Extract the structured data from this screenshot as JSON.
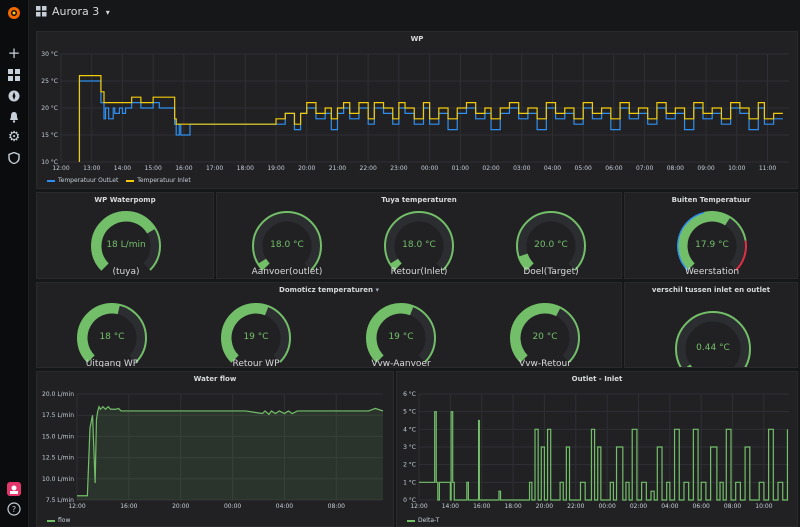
{
  "topbar": {
    "dashboard_title": "Aurora 3",
    "dropdown_caret": "▾"
  },
  "colors": {
    "green": "#73bf69",
    "yellow": "#f2cc0c",
    "blue": "#2f8ff0",
    "red": "#e02f44"
  },
  "wp": {
    "title": "WP",
    "legend": [
      "Temperatuur OutLet",
      "Temperatuur Inlet"
    ],
    "chart_data": {
      "type": "line",
      "title": "WP",
      "y_ticks": [
        "10 °C",
        "15 °C",
        "20 °C",
        "25 °C",
        "30 °C"
      ],
      "ylim": [
        10,
        30
      ],
      "x_ticks": [
        "12:00",
        "13:00",
        "14:00",
        "15:00",
        "16:00",
        "17:00",
        "18:00",
        "19:00",
        "20:00",
        "21:00",
        "22:00",
        "23:00",
        "00:00",
        "01:00",
        "02:00",
        "03:00",
        "04:00",
        "05:00",
        "06:00",
        "07:00",
        "08:00",
        "09:00",
        "10:00",
        "11:00"
      ],
      "series": [
        {
          "name": "Temperatuur OutLet",
          "color": "#2f8ff0",
          "x": [
            0.6,
            0.6,
            1.0,
            1.3,
            1.4,
            1.45,
            1.55,
            1.7,
            1.75,
            1.9,
            2.0,
            2.1,
            2.3,
            2.6,
            3.0,
            3.2,
            3.5,
            3.7,
            3.75,
            3.85,
            3.9,
            4.2,
            6.3,
            6.5,
            7.0,
            7.3,
            7.6,
            7.8,
            8.0,
            8.3,
            8.6,
            8.8,
            9.0,
            9.2,
            9.4,
            9.7,
            10.0,
            10.2,
            10.5,
            10.8,
            11.0,
            11.2,
            11.5,
            11.8,
            12.0,
            12.3,
            12.6,
            12.9,
            13.2,
            13.5,
            13.8,
            14.0,
            14.3,
            14.6,
            14.9,
            15.2,
            15.5,
            15.8,
            16.1,
            16.4,
            16.7,
            17.0,
            17.3,
            17.6,
            17.9,
            18.2,
            18.5,
            18.8,
            19.1,
            19.4,
            19.7,
            20.0,
            20.3,
            20.6,
            20.9,
            21.2,
            21.5,
            21.8,
            22.1,
            22.4,
            22.7,
            22.9,
            23.2,
            23.5
          ],
          "y": [
            10,
            25,
            25,
            21,
            18,
            20,
            18,
            20,
            19,
            20,
            19,
            20,
            21,
            20,
            21,
            20,
            20,
            17,
            15,
            17,
            15,
            17,
            17,
            17,
            17,
            19,
            16,
            19,
            20,
            18,
            19,
            16,
            19,
            20,
            18,
            20,
            17,
            20,
            19,
            17,
            20,
            19,
            17,
            20,
            17,
            19,
            16,
            19,
            20,
            18,
            19,
            16,
            19,
            20,
            18,
            19,
            16,
            20,
            18,
            19,
            17,
            20,
            18,
            19,
            16,
            20,
            18,
            19,
            17,
            20,
            18,
            19,
            16,
            20,
            18,
            19,
            17,
            20,
            19,
            16,
            20,
            17,
            18,
            18
          ]
        },
        {
          "name": "Temperatuur Inlet",
          "color": "#f2cc0c",
          "x": [
            0.6,
            0.6,
            1.0,
            1.3,
            1.4,
            1.55,
            1.75,
            2.0,
            2.3,
            2.6,
            3.0,
            3.2,
            3.5,
            3.7,
            3.75,
            3.85,
            3.9,
            4.2,
            6.3,
            6.5,
            7.0,
            7.3,
            7.6,
            7.8,
            8.0,
            8.3,
            8.6,
            8.8,
            9.0,
            9.2,
            9.4,
            9.7,
            10.0,
            10.2,
            10.5,
            10.8,
            11.0,
            11.2,
            11.5,
            11.8,
            12.0,
            12.3,
            12.6,
            12.9,
            13.2,
            13.5,
            13.8,
            14.0,
            14.3,
            14.6,
            14.9,
            15.2,
            15.5,
            15.8,
            16.1,
            16.4,
            16.7,
            17.0,
            17.3,
            17.6,
            17.9,
            18.2,
            18.5,
            18.8,
            19.1,
            19.4,
            19.7,
            20.0,
            20.3,
            20.6,
            20.9,
            21.2,
            21.5,
            21.8,
            22.1,
            22.4,
            22.7,
            22.9,
            23.2,
            23.5
          ],
          "y": [
            10,
            26,
            26,
            23,
            21,
            21,
            21,
            21,
            22,
            21,
            22,
            22,
            22,
            18,
            17,
            17,
            17,
            17,
            17,
            17,
            18,
            19,
            17,
            19,
            21,
            19,
            20,
            18,
            20,
            21,
            19,
            21,
            18,
            21,
            20,
            18,
            21,
            20,
            18,
            21,
            18,
            20,
            18,
            20,
            21,
            19,
            20,
            18,
            20,
            21,
            19,
            20,
            18,
            21,
            19,
            20,
            18,
            21,
            19,
            20,
            18,
            21,
            19,
            20,
            18,
            21,
            19,
            20,
            18,
            21,
            19,
            20,
            18,
            21,
            20,
            18,
            21,
            18,
            19,
            19
          ]
        }
      ]
    }
  },
  "pump": {
    "title": "WP Waterpomp",
    "gauges": [
      {
        "value": "18 L/min",
        "label": "(tuya)",
        "fraction": 0.72
      }
    ]
  },
  "tuya": {
    "title": "Tuya temperaturen",
    "gauges": [
      {
        "value": "18.0 °C",
        "label": "Aanvoer(outlet)",
        "fraction": 0.05
      },
      {
        "value": "18.0 °C",
        "label": "Retour(Inlet)",
        "fraction": 0.05
      },
      {
        "value": "20.0 °C",
        "label": "Doel(Target)",
        "fraction": 0.1
      }
    ]
  },
  "buiten": {
    "title": "Buiten Temperatuur",
    "gauges": [
      {
        "value": "17.9 °C",
        "label": "Weerstation",
        "fraction": 0.62
      }
    ]
  },
  "domoticz": {
    "title": "Domoticz temperaturen",
    "caret": "▾",
    "gauges": [
      {
        "value": "18 °C",
        "label": "Uitgang WP",
        "fraction": 0.55
      },
      {
        "value": "19 °C",
        "label": "Retour WP",
        "fraction": 0.58
      },
      {
        "value": "19 °C",
        "label": "Vvw-Aanvoer",
        "fraction": 0.58
      },
      {
        "value": "20 °C",
        "label": "Vvw-Retour",
        "fraction": 0.6
      }
    ]
  },
  "verschil": {
    "title": "verschil tussen inlet en outlet",
    "gauges": [
      {
        "value": "0.44 °C",
        "label": "",
        "fraction": 0.04
      }
    ]
  },
  "waterflow": {
    "title": "Water flow",
    "legend": [
      "flow"
    ],
    "chart_data": {
      "type": "area",
      "title": "Water flow",
      "y_ticks": [
        "7.5 L/min",
        "10.0 L/min",
        "12.5 L/min",
        "15.0 L/min",
        "17.5 L/min",
        "20.0 L/min"
      ],
      "ylim": [
        7.5,
        20
      ],
      "x_ticks": [
        "12:00",
        "16:00",
        "20:00",
        "00:00",
        "04:00",
        "08:00"
      ],
      "series": [
        {
          "name": "flow",
          "color": "#73bf69",
          "x": [
            0,
            0.5,
            0.8,
            1.0,
            1.2,
            1.4,
            1.5,
            1.6,
            1.7,
            1.8,
            2.0,
            2.2,
            2.4,
            2.6,
            3.0,
            3.2,
            3.4,
            4,
            6,
            10,
            13,
            14.3,
            14.5,
            14.8,
            15.0,
            15.3,
            15.6,
            16,
            16.3,
            16.6,
            17,
            17.5,
            18,
            19,
            21,
            22.5,
            23,
            23.6
          ],
          "y": [
            8,
            8,
            8,
            16,
            17.5,
            9.5,
            17,
            18,
            18.5,
            18.2,
            18.5,
            18.2,
            18.5,
            18.2,
            18.2,
            18.3,
            18.0,
            18,
            18,
            18,
            18,
            17.7,
            18.0,
            17.6,
            18.0,
            17.7,
            18.0,
            17.7,
            18.0,
            17.7,
            18.0,
            18.0,
            18,
            18,
            18,
            18,
            18.3,
            18
          ]
        }
      ]
    }
  },
  "outlet": {
    "title": "Outlet - Inlet",
    "legend": [
      "Delta-T"
    ],
    "chart_data": {
      "type": "line",
      "title": "Outlet - Inlet",
      "y_ticks": [
        "0 °C",
        "1 °C",
        "2 °C",
        "3 °C",
        "4 °C",
        "5 °C",
        "6 °C"
      ],
      "ylim": [
        0,
        6
      ],
      "x_ticks": [
        "12:00",
        "14:00",
        "16:00",
        "18:00",
        "20:00",
        "22:00",
        "00:00",
        "02:00",
        "04:00",
        "06:00",
        "08:00",
        "10:00"
      ],
      "series": [
        {
          "name": "Delta-T",
          "color": "#73bf69",
          "x": [
            0,
            0.4,
            0.8,
            1.0,
            1.1,
            1.2,
            1.3,
            1.6,
            2.0,
            2.05,
            2.15,
            2.25,
            3.0,
            3.05,
            3.15,
            3.3,
            3.8,
            3.85,
            4.0,
            4.2,
            5.0,
            5.1,
            5.2,
            7.0,
            7.05,
            7.2,
            7.4,
            7.6,
            7.8,
            8.0,
            8.2,
            8.4,
            8.7,
            9.0,
            9.2,
            9.4,
            9.6,
            9.8,
            10.0,
            10.3,
            10.6,
            11.0,
            11.2,
            11.4,
            11.6,
            12.0,
            12.2,
            12.4,
            12.6,
            13.0,
            13.2,
            13.4,
            13.6,
            13.9,
            14.2,
            14.5,
            14.8,
            15.0,
            15.2,
            15.5,
            15.8,
            16.0,
            16.3,
            16.6,
            16.9,
            17.2,
            17.5,
            17.8,
            18.0,
            18.3,
            18.6,
            19.0,
            19.2,
            19.4,
            19.6,
            19.9,
            20.2,
            20.5,
            20.8,
            21.1,
            21.4,
            21.7,
            22.0,
            22.3,
            22.6,
            22.9,
            23.2,
            23.5
          ],
          "y": [
            1,
            1,
            1,
            5,
            1,
            0,
            1,
            1,
            0,
            5,
            1,
            0,
            0,
            1,
            0,
            0,
            4.5,
            0,
            0,
            0,
            0,
            0.5,
            0,
            0,
            1,
            0,
            4,
            0,
            3,
            0,
            4,
            0,
            0,
            1,
            0,
            3,
            0,
            0,
            0,
            1,
            0,
            4,
            0,
            3,
            0,
            0,
            1,
            0,
            3,
            0,
            1,
            0,
            4,
            0,
            1,
            0,
            0.5,
            0,
            3,
            0,
            1,
            0,
            4,
            0,
            1,
            0,
            4,
            0,
            1,
            0,
            3,
            0,
            1,
            0,
            4,
            0,
            1,
            0,
            3,
            0,
            0,
            1,
            0,
            4,
            0,
            1,
            0,
            4
          ]
        }
      ]
    }
  }
}
